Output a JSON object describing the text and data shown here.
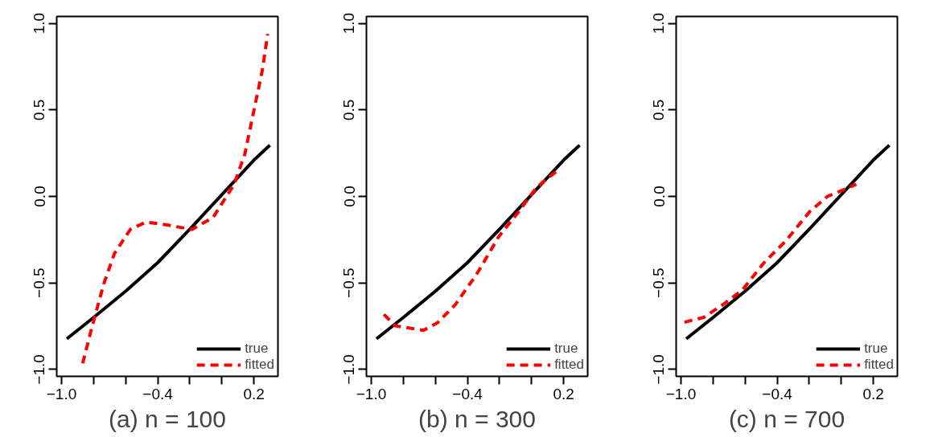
{
  "chart_data": [
    {
      "type": "line",
      "xlabel": "(a) n = 100",
      "xlim": [
        -1.03,
        0.35
      ],
      "ylim": [
        -1.04,
        1.04
      ],
      "xticks": [
        {
          "value": -1.0,
          "label": "−1.0"
        },
        {
          "value": -0.8,
          "label": null
        },
        {
          "value": -0.6,
          "label": null
        },
        {
          "value": -0.4,
          "label": "−0.4"
        },
        {
          "value": -0.2,
          "label": null
        },
        {
          "value": 0.0,
          "label": null
        },
        {
          "value": 0.2,
          "label": "0.2"
        }
      ],
      "yticks": [
        {
          "value": -1.0,
          "label": "−1.0"
        },
        {
          "value": -0.5,
          "label": "−0.5"
        },
        {
          "value": 0.0,
          "label": "0.0"
        },
        {
          "value": 0.5,
          "label": "0.5"
        },
        {
          "value": 1.0,
          "label": "1.0"
        }
      ],
      "legend": "bottom right",
      "grid": false,
      "series": [
        {
          "name": "true",
          "color": "#000000",
          "line_style": "solid",
          "x": [
            -0.967,
            -0.8,
            -0.6,
            -0.4,
            -0.2,
            0.0,
            0.2,
            0.3
          ],
          "values": [
            -0.823,
            -0.7,
            -0.548,
            -0.383,
            -0.19,
            0.01,
            0.21,
            0.296
          ]
        },
        {
          "name": "fitted",
          "color": "#ff0000",
          "line_style": "dashed",
          "x": [
            -0.868,
            -0.813,
            -0.736,
            -0.67,
            -0.571,
            -0.473,
            -0.341,
            -0.187,
            -0.055,
            0.077,
            0.143,
            0.198,
            0.253,
            0.286
          ],
          "values": [
            -0.965,
            -0.765,
            -0.504,
            -0.33,
            -0.191,
            -0.148,
            -0.165,
            -0.191,
            -0.122,
            0.07,
            0.243,
            0.487,
            0.73,
            0.939
          ]
        }
      ]
    },
    {
      "type": "line",
      "xlabel": "(b) n = 300",
      "xlim": [
        -1.03,
        0.35
      ],
      "ylim": [
        -1.04,
        1.04
      ],
      "xticks": [
        {
          "value": -1.0,
          "label": "−1.0"
        },
        {
          "value": -0.8,
          "label": null
        },
        {
          "value": -0.6,
          "label": null
        },
        {
          "value": -0.4,
          "label": "−0.4"
        },
        {
          "value": -0.2,
          "label": null
        },
        {
          "value": 0.0,
          "label": null
        },
        {
          "value": 0.2,
          "label": "0.2"
        }
      ],
      "yticks": [
        {
          "value": -1.0,
          "label": "−1.0"
        },
        {
          "value": -0.5,
          "label": "−0.5"
        },
        {
          "value": 0.0,
          "label": "0.0"
        },
        {
          "value": 0.5,
          "label": "0.5"
        },
        {
          "value": 1.0,
          "label": "1.0"
        }
      ],
      "legend": "bottom right",
      "grid": false,
      "series": [
        {
          "name": "true",
          "color": "#000000",
          "line_style": "solid",
          "x": [
            -0.967,
            -0.8,
            -0.6,
            -0.4,
            -0.2,
            0.0,
            0.2,
            0.3
          ],
          "values": [
            -0.823,
            -0.7,
            -0.548,
            -0.383,
            -0.19,
            0.01,
            0.21,
            0.296
          ]
        },
        {
          "name": "fitted",
          "color": "#ff0000",
          "line_style": "dashed",
          "x": [
            -0.921,
            -0.85,
            -0.674,
            -0.586,
            -0.476,
            -0.344,
            -0.2,
            -0.079,
            0.031,
            0.152
          ],
          "values": [
            -0.682,
            -0.748,
            -0.774,
            -0.73,
            -0.626,
            -0.452,
            -0.226,
            -0.087,
            0.052,
            0.143
          ]
        }
      ]
    },
    {
      "type": "line",
      "xlabel": "(c) n = 700",
      "xlim": [
        -1.03,
        0.35
      ],
      "ylim": [
        -1.04,
        1.04
      ],
      "xticks": [
        {
          "value": -1.0,
          "label": "−1.0"
        },
        {
          "value": -0.8,
          "label": null
        },
        {
          "value": -0.6,
          "label": null
        },
        {
          "value": -0.4,
          "label": "−0.4"
        },
        {
          "value": -0.2,
          "label": null
        },
        {
          "value": 0.0,
          "label": null
        },
        {
          "value": 0.2,
          "label": "0.2"
        }
      ],
      "yticks": [
        {
          "value": -1.0,
          "label": "−1.0"
        },
        {
          "value": -0.5,
          "label": "−0.5"
        },
        {
          "value": 0.0,
          "label": "0.0"
        },
        {
          "value": 0.5,
          "label": "0.5"
        },
        {
          "value": 1.0,
          "label": "1.0"
        }
      ],
      "legend": "bottom right",
      "grid": false,
      "series": [
        {
          "name": "true",
          "color": "#000000",
          "line_style": "solid",
          "x": [
            -0.967,
            -0.8,
            -0.6,
            -0.4,
            -0.2,
            0.0,
            0.2,
            0.3
          ],
          "values": [
            -0.823,
            -0.7,
            -0.548,
            -0.383,
            -0.19,
            0.01,
            0.21,
            0.296
          ]
        },
        {
          "name": "fitted",
          "color": "#ff0000",
          "line_style": "dashed",
          "x": [
            -0.978,
            -0.857,
            -0.725,
            -0.615,
            -0.482,
            -0.35,
            -0.196,
            -0.086,
            0.006,
            0.094
          ],
          "values": [
            -0.727,
            -0.699,
            -0.617,
            -0.539,
            -0.383,
            -0.261,
            -0.087,
            0.0,
            0.035,
            0.07
          ]
        }
      ]
    }
  ]
}
